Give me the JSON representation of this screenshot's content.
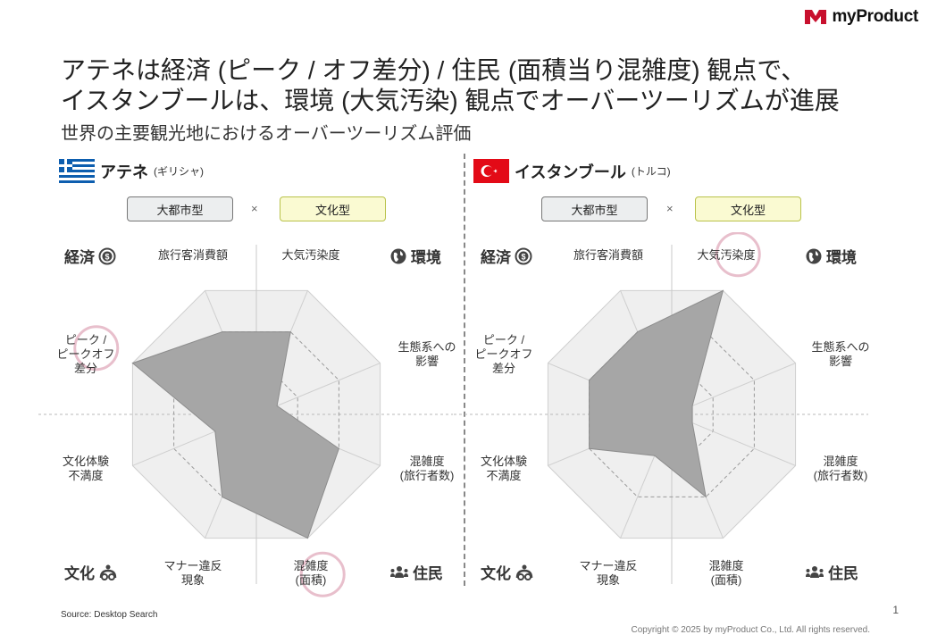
{
  "header": {
    "logo_text": "myProduct"
  },
  "title_line1": "アテネは経済 (ピーク / オフ差分) / 住民 (面積当り混雑度) 観点で、",
  "title_line2": "イスタンブールは、環境 (大気汚染) 観点でオーバーツーリズムが進展",
  "subtitle": "世界の主要観光地におけるオーバーツーリズム評価",
  "tags": {
    "city_type": "大都市型",
    "times": "×",
    "culture_type": "文化型"
  },
  "categories": {
    "economy": "経済",
    "environment": "環境",
    "culture": "文化",
    "residents": "住民"
  },
  "axis_labels": {
    "spend": [
      "旅行客消費額"
    ],
    "air": [
      "大気汚染度"
    ],
    "eco": [
      "生態系への",
      "影響"
    ],
    "crowd_visitors": [
      "混雑度",
      "(旅行者数)"
    ],
    "crowd_area": [
      "混雑度",
      "(面積)"
    ],
    "manners": [
      "マナー違反",
      "現象"
    ],
    "culture_dissat": [
      "文化体験",
      "不満度"
    ],
    "peak_off": [
      "ピーク /",
      "ピークオフ",
      "差分"
    ]
  },
  "panels": [
    {
      "city": "アテネ",
      "country": "(ギリシャ)",
      "flag": "greece-flag",
      "highlight_axes": [
        "peak_off",
        "crowd_area"
      ]
    },
    {
      "city": "イスタンブール",
      "country": "(トルコ)",
      "flag": "turkey-flag",
      "highlight_axes": [
        "air"
      ]
    }
  ],
  "chart_data": [
    {
      "type": "radar",
      "title": "アテネ",
      "scale": [
        0,
        3
      ],
      "axes": [
        "旅行客消費額",
        "大気汚染度",
        "生態系への影響",
        "混雑度(旅行者数)",
        "混雑度(面積)",
        "マナー違反現象",
        "文化体験不満度",
        "ピーク / ピークオフ差分"
      ],
      "values": [
        2,
        2,
        0.5,
        2,
        3,
        2,
        1,
        3
      ],
      "series_color": "#a6a6a6",
      "highlights": [
        "ピーク / ピークオフ差分",
        "混雑度(面積)"
      ]
    },
    {
      "type": "radar",
      "title": "イスタンブール",
      "scale": [
        0,
        3
      ],
      "axes": [
        "旅行客消費額",
        "大気汚染度",
        "生態系への影響",
        "混雑度(旅行者数)",
        "混雑度(面積)",
        "マナー違反現象",
        "文化体験不満度",
        "ピーク / ピークオフ差分"
      ],
      "values": [
        2,
        3,
        0.5,
        0.5,
        2,
        1,
        2,
        2
      ],
      "series_color": "#a6a6a6",
      "highlights": [
        "大気汚染度"
      ]
    }
  ],
  "source": "Source: Desktop Search",
  "page_number": "1",
  "copyright": "Copyright © 2025 by myProduct Co., Ltd.  All rights reserved.",
  "colors": {
    "highlight": "#e8bfcc",
    "fill": "#a6a6a6",
    "ring": "#efefef",
    "ring_stroke": "#cfcfcf"
  }
}
